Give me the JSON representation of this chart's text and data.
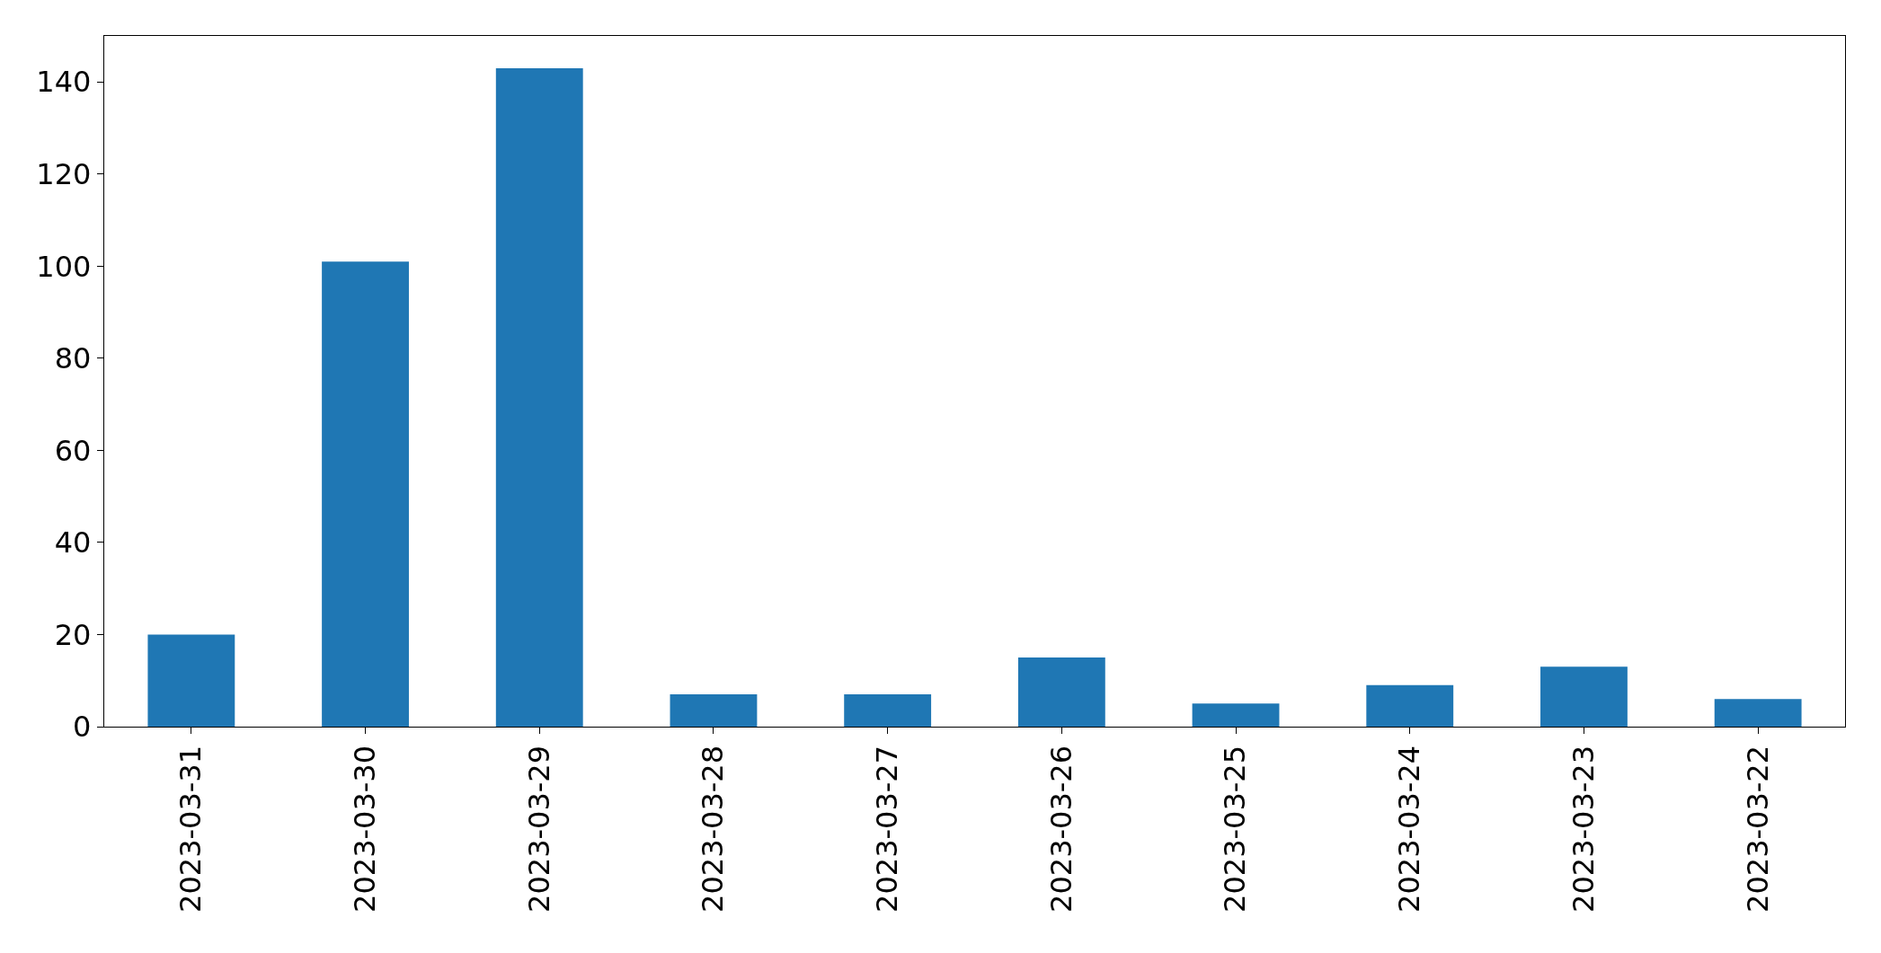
{
  "chart_data": {
    "type": "bar",
    "categories": [
      "2023-03-31",
      "2023-03-30",
      "2023-03-29",
      "2023-03-28",
      "2023-03-27",
      "2023-03-26",
      "2023-03-25",
      "2023-03-24",
      "2023-03-23",
      "2023-03-22"
    ],
    "values": [
      20,
      101,
      143,
      7,
      7,
      15,
      5,
      9,
      13,
      6
    ],
    "color": "#1f77b4",
    "ylim": [
      0,
      150
    ],
    "yticks": [
      0,
      20,
      40,
      60,
      80,
      100,
      120,
      140
    ],
    "grid": false
  }
}
